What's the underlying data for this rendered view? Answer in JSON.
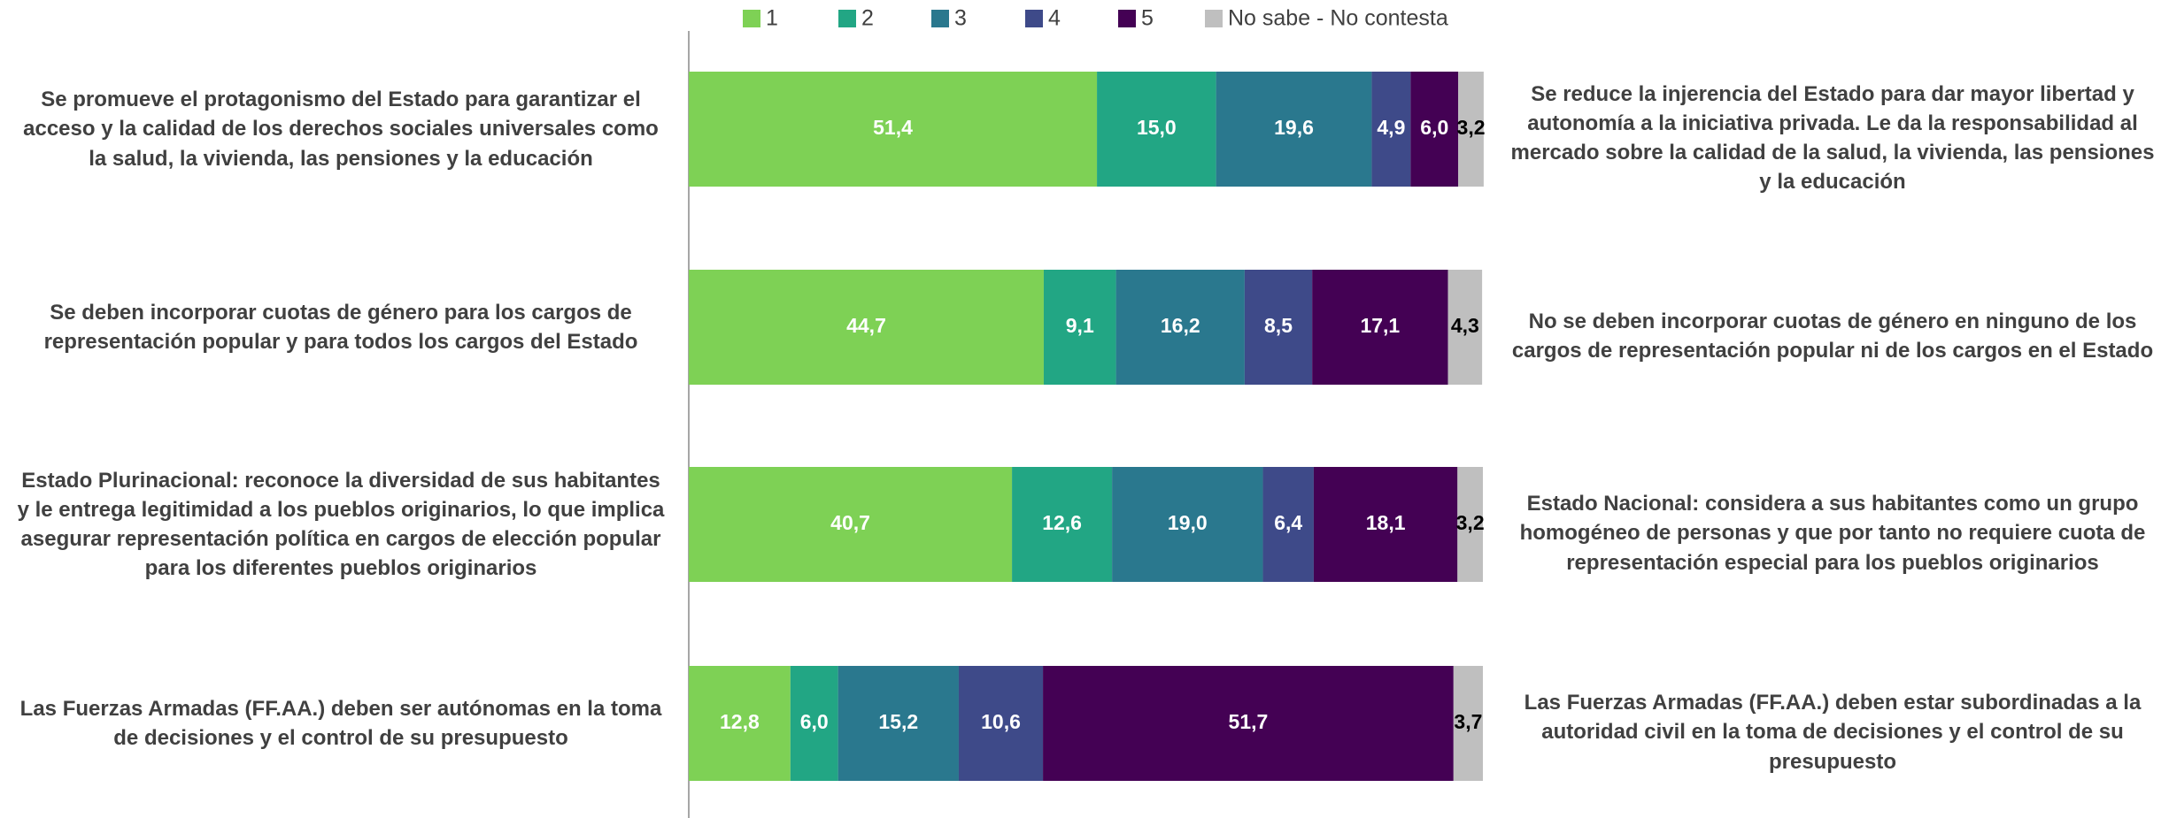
{
  "chart_data": {
    "type": "stacked_bar_horizontal",
    "categories": [
      "Se promueve el protagonismo del Estado para garantizar el acceso y la calidad de los derechos sociales universales como la salud, la vivienda, las pensiones y la educación",
      "Se deben incorporar cuotas de género para los cargos de representación popular y para todos los cargos del Estado",
      "Estado Plurinacional: reconoce la diversidad de sus habitantes y le entrega legitimidad a los pueblos originarios, lo que implica asegurar representación política en cargos de elección popular para los diferentes pueblos originarios",
      "Las Fuerzas Armadas (FF.AA.) deben ser autónomas en la toma de decisiones y el control de su presupuesto"
    ],
    "right_labels": [
      "Se reduce la injerencia del Estado para dar mayor libertad y autonomía a la iniciativa privada. Le da la responsabilidad al mercado sobre la calidad de la salud, la vivienda, las pensiones y la educación",
      "No se deben incorporar cuotas de género en ninguno de los cargos de representación popular ni de los cargos en el Estado",
      "Estado Nacional: considera a sus habitantes como un grupo homogéneo de personas y que por tanto no requiere cuota de representación especial para los pueblos originarios",
      "Las Fuerzas Armadas (FF.AA.) deben estar subordinadas a la autoridad civil en la toma de decisiones y el control de su presupuesto"
    ],
    "series": [
      {
        "name": "1",
        "color": "#7ed155",
        "label_color": "#ffffff",
        "values": [
          51.4,
          44.7,
          40.7,
          12.8
        ],
        "value_labels": [
          "51,4",
          "44,7",
          "40,7",
          "12,8"
        ]
      },
      {
        "name": "2",
        "color": "#22a684",
        "label_color": "#ffffff",
        "values": [
          15.0,
          9.1,
          12.6,
          6.0
        ],
        "value_labels": [
          "15,0",
          "9,1",
          "12,6",
          "6,0"
        ]
      },
      {
        "name": "3",
        "color": "#2a788e",
        "label_color": "#ffffff",
        "values": [
          19.6,
          16.2,
          19.0,
          15.2
        ],
        "value_labels": [
          "19,6",
          "16,2",
          "19,0",
          "15,2"
        ]
      },
      {
        "name": "4",
        "color": "#3e4a89",
        "label_color": "#ffffff",
        "values": [
          4.9,
          8.5,
          6.4,
          10.6
        ],
        "value_labels": [
          "4,9",
          "8,5",
          "6,4",
          "10,6"
        ]
      },
      {
        "name": "5",
        "color": "#440154",
        "label_color": "#ffffff",
        "values": [
          6.0,
          17.1,
          18.1,
          51.7
        ],
        "value_labels": [
          "6,0",
          "17,1",
          "18,1",
          "51,7"
        ]
      },
      {
        "name": "No sabe - No contesta",
        "color": "#bfbfbf",
        "label_color": "#000000",
        "values": [
          3.2,
          4.3,
          3.2,
          3.7
        ],
        "value_labels": [
          "3,2",
          "4,3",
          "3,2",
          "3,7"
        ]
      }
    ],
    "xlim": [
      0,
      100
    ],
    "legend": "top"
  }
}
